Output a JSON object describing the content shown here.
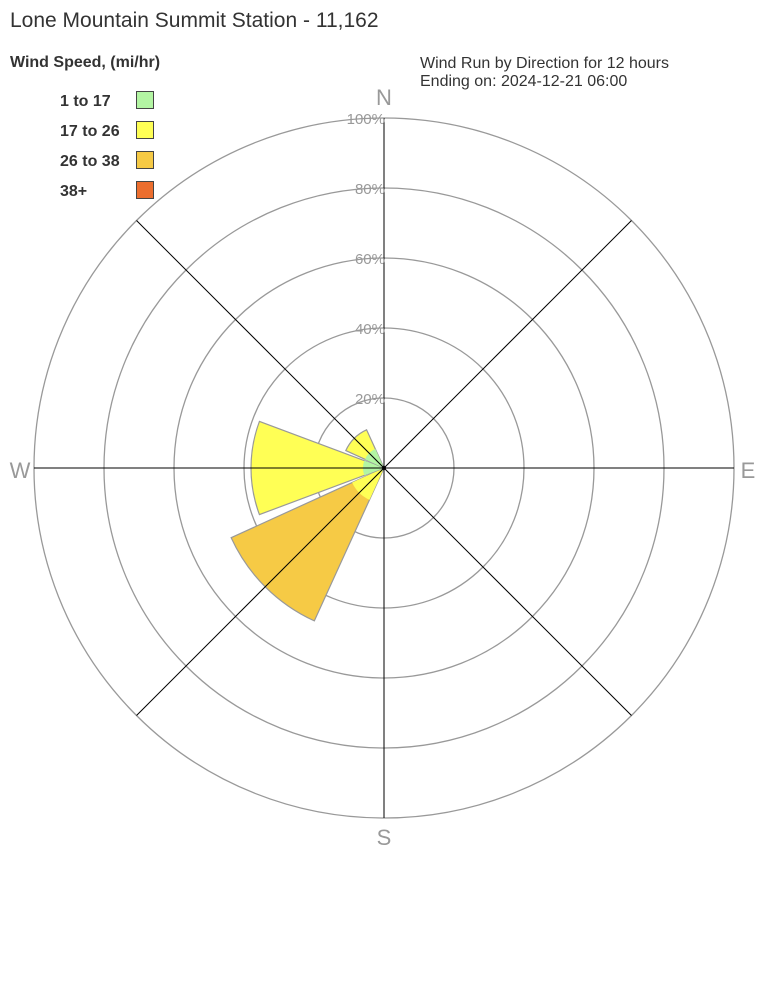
{
  "title": "Lone Mountain Summit Station - 11,162",
  "subtitle_line1": "Wind Run by Direction for 12 hours",
  "subtitle_line2": "Ending on: 2024-12-21 06:00",
  "chart_data": {
    "type": "wind-rose",
    "title": "Lone Mountain Summit Station - 11,162",
    "legend_title": "Wind Speed, (mi/hr)",
    "legend_placement": "top-left",
    "radial_ticks": [
      "20%",
      "40%",
      "60%",
      "80%",
      "100%"
    ],
    "radial_range": [
      0,
      100
    ],
    "compass_labels": [
      "N",
      "E",
      "S",
      "W"
    ],
    "bins": [
      {
        "name": "1 to 17",
        "color": "#b3f5a3"
      },
      {
        "name": "17 to 26",
        "color": "#ffff55"
      },
      {
        "name": "26 to 38",
        "color": "#f6ca45"
      },
      {
        "name": "38+",
        "color": "#ec6e2e"
      }
    ],
    "directions": [
      "N",
      "NE",
      "E",
      "SE",
      "S",
      "SW",
      "W",
      "NW"
    ],
    "cumulative_percent": {
      "N": [
        0,
        0,
        0,
        0
      ],
      "NE": [
        0,
        0,
        0,
        0
      ],
      "E": [
        0,
        0,
        0,
        0
      ],
      "SE": [
        0,
        0,
        0,
        0
      ],
      "S": [
        0,
        0,
        0,
        0
      ],
      "SW": [
        1,
        10,
        48,
        48
      ],
      "W": [
        6,
        38,
        38,
        38
      ],
      "NW": [
        6,
        12,
        12,
        12
      ]
    }
  }
}
